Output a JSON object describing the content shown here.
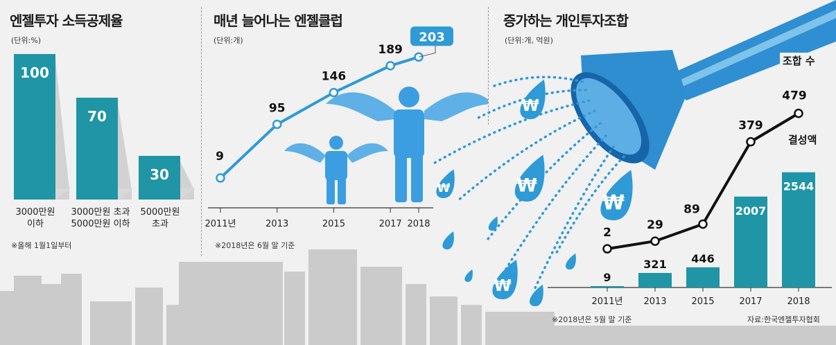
{
  "source": "자료:한국엔젤투자협회",
  "colors": {
    "teal": "#1f95a5",
    "blue": "#2e9ad6",
    "lightblue": "#7ec3ea",
    "skyline": "#c9c9c9"
  },
  "panels": {
    "p1": {
      "title": "엔젤투자 소득공제율",
      "unit": "(단위:%)",
      "note": "※올해 1월1일부터",
      "labels": [
        [
          "3000만원",
          "이하"
        ],
        [
          "3000만원 초과",
          "5000만원 이하"
        ],
        [
          "5000만원",
          "초과"
        ]
      ]
    },
    "p2": {
      "title": "매년 늘어나는 엔젤클럽",
      "unit": "(단위:개)",
      "note": "※2018년은 6월 말 기준"
    },
    "p3": {
      "title": "증가하는 개인투자조합",
      "unit": "(단위:개, 억원)",
      "note": "※2018년은 5월 말 기준",
      "legend_count": "조합 수",
      "legend_amount": "결성액"
    }
  },
  "chart_data": [
    {
      "type": "bar",
      "title": "엔젤투자 소득공제율",
      "unit": "(단위:%)",
      "categories": [
        "3000만원 이하",
        "3000만원 초과 5000만원 이하",
        "5000만원 초과"
      ],
      "values": [
        100,
        70,
        30
      ],
      "value_labels": [
        "100",
        "70",
        "30"
      ],
      "ylim": [
        0,
        100
      ]
    },
    {
      "type": "line",
      "title": "매년 늘어나는 엔젤클럽",
      "unit": "(단위:개)",
      "x": [
        "2011년",
        "2013",
        "2015",
        "2017",
        "2018"
      ],
      "x_numeric": [
        2011,
        2013,
        2015,
        2017,
        2018
      ],
      "values": [
        9,
        95,
        146,
        189,
        203
      ],
      "value_labels": [
        "9",
        "95",
        "146",
        "189",
        "203"
      ],
      "highlight_last": true,
      "ylim": [
        0,
        220
      ]
    },
    {
      "type": "bar",
      "title": "증가하는 개인투자조합",
      "unit": "(단위:개, 억원)",
      "categories": [
        "2011년",
        "2013",
        "2015",
        "2017",
        "2018"
      ],
      "series": [
        {
          "name": "결성액",
          "type": "bar",
          "values": [
            9,
            321,
            446,
            2007,
            2544
          ],
          "value_labels": [
            "9",
            "321",
            "446",
            "2007",
            "2544"
          ]
        },
        {
          "name": "조합 수",
          "type": "line",
          "values": [
            2,
            29,
            89,
            379,
            479
          ],
          "value_labels": [
            "2",
            "29",
            "89",
            "379",
            "479"
          ]
        }
      ],
      "ylim_bar": [
        0,
        2600
      ],
      "ylim_line": [
        0,
        500
      ]
    }
  ]
}
